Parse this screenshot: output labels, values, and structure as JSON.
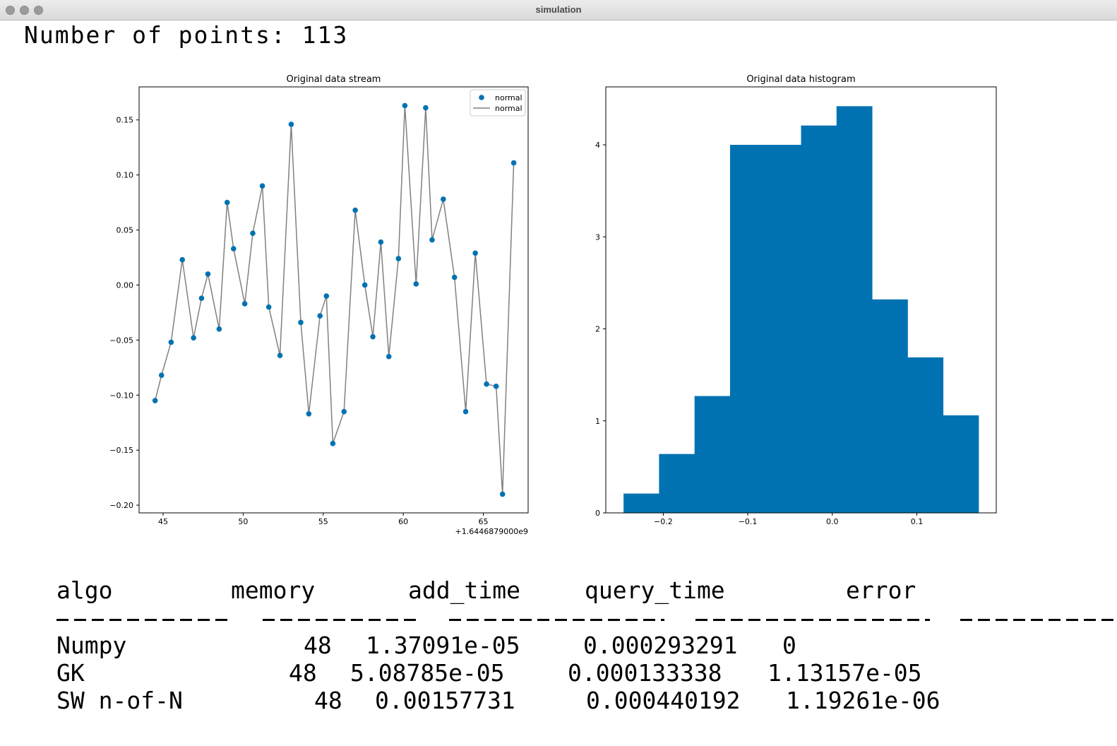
{
  "window": {
    "title": "simulation"
  },
  "header": {
    "points_label": "Number of points: 113"
  },
  "charts": [
    {
      "type": "line",
      "title": "Original data stream",
      "offset_label": "+1.6446879000e9",
      "xticks": [
        "45",
        "50",
        "55",
        "60",
        "65"
      ],
      "xtick_values": [
        45,
        50,
        55,
        60,
        65
      ],
      "yticks": [
        "0.15",
        "0.10",
        "0.05",
        "0.00",
        "−0.05",
        "−0.10",
        "−0.15",
        "−0.20"
      ],
      "ytick_values": [
        0.15,
        0.1,
        0.05,
        0.0,
        -0.05,
        -0.1,
        -0.15,
        -0.2
      ],
      "xlim": [
        43.5,
        67.8
      ],
      "ylim": [
        -0.207,
        0.18
      ],
      "legend": {
        "position": "top-right",
        "entries": [
          "normal",
          "normal"
        ]
      },
      "marker_color": "#0072b2",
      "line_color": "#808080",
      "x": [
        44.5,
        44.9,
        45.5,
        46.2,
        46.9,
        47.4,
        47.8,
        48.5,
        49.0,
        49.4,
        50.1,
        50.6,
        51.2,
        51.6,
        52.3,
        53.0,
        53.6,
        54.1,
        54.8,
        55.2,
        55.6,
        56.3,
        57.0,
        57.6,
        58.1,
        58.6,
        59.1,
        59.7,
        60.1,
        60.8,
        61.4,
        61.8,
        62.5,
        63.2,
        63.9,
        64.5,
        65.2,
        65.8,
        66.2,
        66.9
      ],
      "y": [
        -0.105,
        -0.082,
        -0.052,
        0.023,
        -0.048,
        -0.012,
        0.01,
        -0.04,
        0.075,
        0.033,
        -0.017,
        0.047,
        0.09,
        -0.02,
        -0.064,
        0.146,
        -0.034,
        -0.117,
        -0.028,
        -0.01,
        -0.144,
        -0.115,
        0.068,
        0.0,
        -0.047,
        0.039,
        -0.065,
        0.024,
        0.163,
        0.001,
        0.161,
        0.041,
        0.078,
        0.007,
        -0.115,
        0.029,
        -0.09,
        -0.092,
        -0.19,
        0.111
      ]
    },
    {
      "type": "bar",
      "title": "Original data histogram",
      "xticks": [
        "−0.2",
        "−0.1",
        "0.0",
        "0.1"
      ],
      "xtick_values": [
        -0.2,
        -0.1,
        0.0,
        0.1
      ],
      "yticks": [
        "0",
        "1",
        "2",
        "3",
        "4"
      ],
      "ytick_values": [
        0,
        1,
        2,
        3,
        4
      ],
      "xlim": [
        -0.268,
        0.194
      ],
      "ylim": [
        0,
        4.63
      ],
      "bar_color": "#0072b2",
      "bin_edges": [
        -0.247,
        -0.205,
        -0.163,
        -0.121,
        -0.079,
        -0.037,
        0.005,
        0.047,
        0.089,
        0.131,
        0.173
      ],
      "values": [
        0.21,
        0.64,
        1.27,
        4.0,
        4.0,
        4.21,
        4.42,
        2.32,
        1.69,
        1.06
      ]
    }
  ],
  "table": {
    "headers": [
      "algo",
      "memory",
      "add_time",
      "query_time",
      "error"
    ],
    "rows": [
      [
        "Numpy",
        "48",
        "1.37091e-05",
        "0.000293291",
        "0"
      ],
      [
        "GK",
        "48",
        "5.08785e-05",
        "0.000133338",
        "1.13157e-05"
      ],
      [
        "SW n-of-N",
        "48",
        "0.00157731",
        "0.000440192",
        "1.19261e-06"
      ]
    ]
  }
}
